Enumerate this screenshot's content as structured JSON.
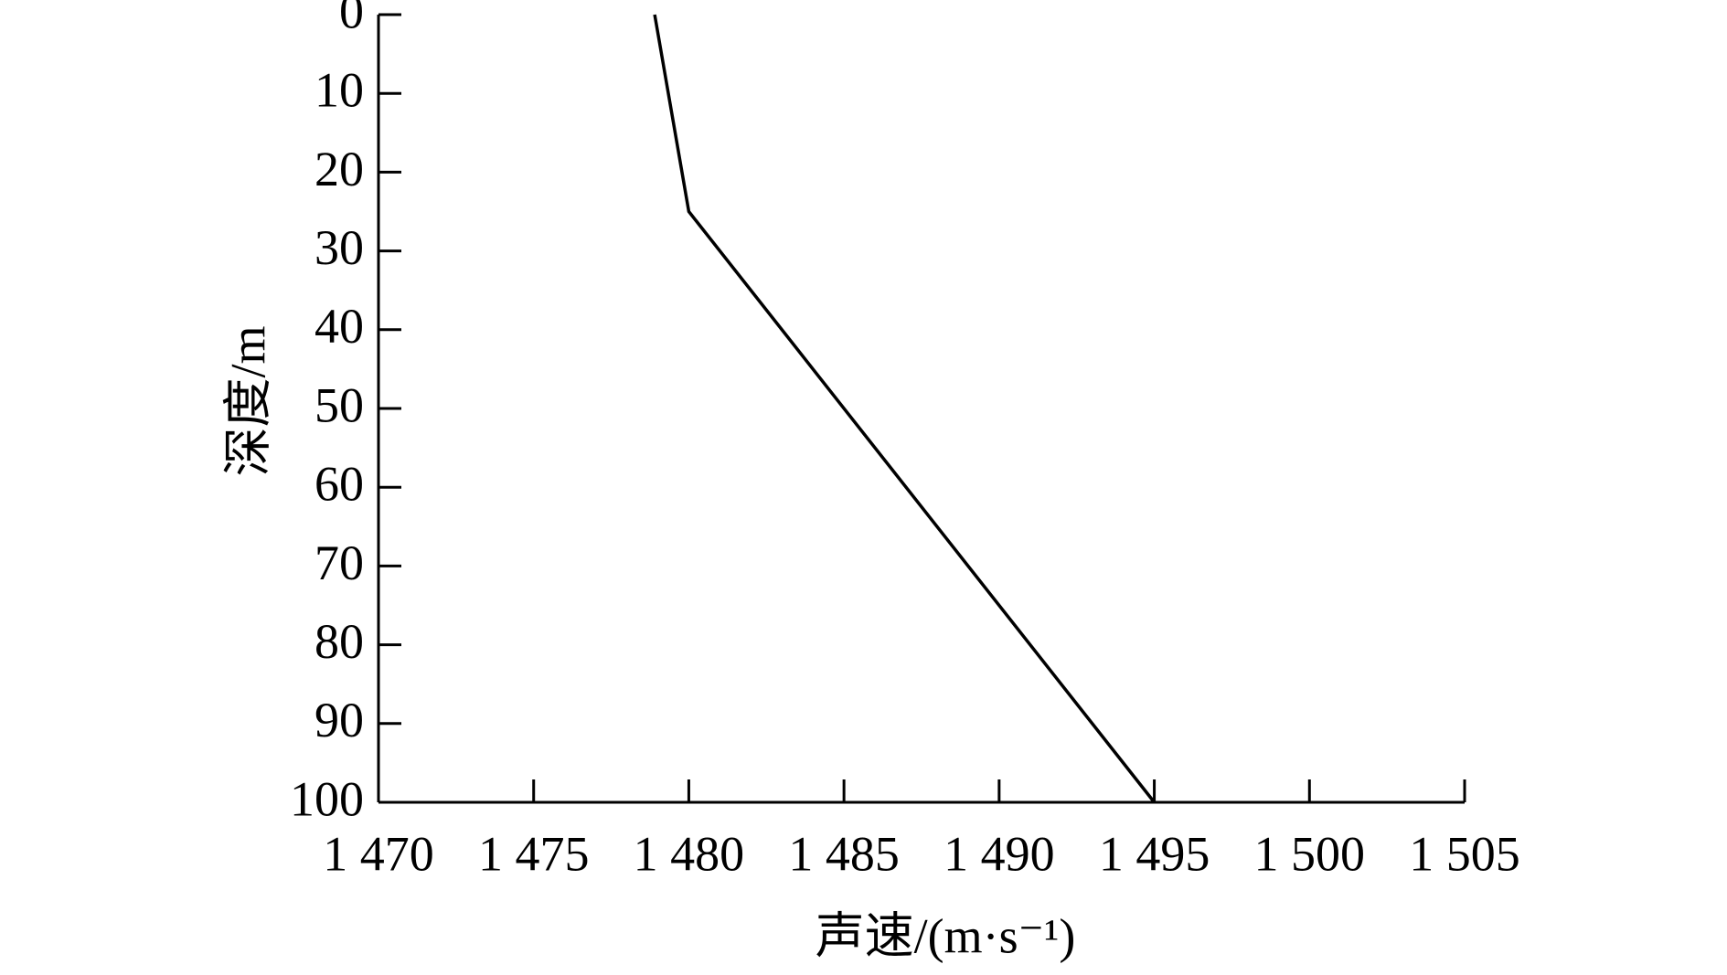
{
  "chart_data": {
    "type": "line",
    "x_label": "声速/(m·s⁻¹)",
    "y_label": "深度/m",
    "series": [
      {
        "x": [
          1478.9,
          1480,
          1495
        ],
        "values": [
          0,
          25,
          100
        ],
        "color": "#000000"
      }
    ],
    "xlim": [
      1470,
      1505
    ],
    "xticks": [
      {
        "value": 1470,
        "label": "1 470"
      },
      {
        "value": 1475,
        "label": "1 475"
      },
      {
        "value": 1480,
        "label": "1 480"
      },
      {
        "value": 1485,
        "label": "1 485"
      },
      {
        "value": 1490,
        "label": "1 490"
      },
      {
        "value": 1495,
        "label": "1 495"
      },
      {
        "value": 1500,
        "label": "1 500"
      },
      {
        "value": 1505,
        "label": "1 505"
      }
    ],
    "ylim": [
      0,
      100
    ],
    "y_inverted": true,
    "yticks": [
      0,
      10,
      20,
      30,
      40,
      50,
      60,
      70,
      80,
      90,
      100
    ]
  }
}
